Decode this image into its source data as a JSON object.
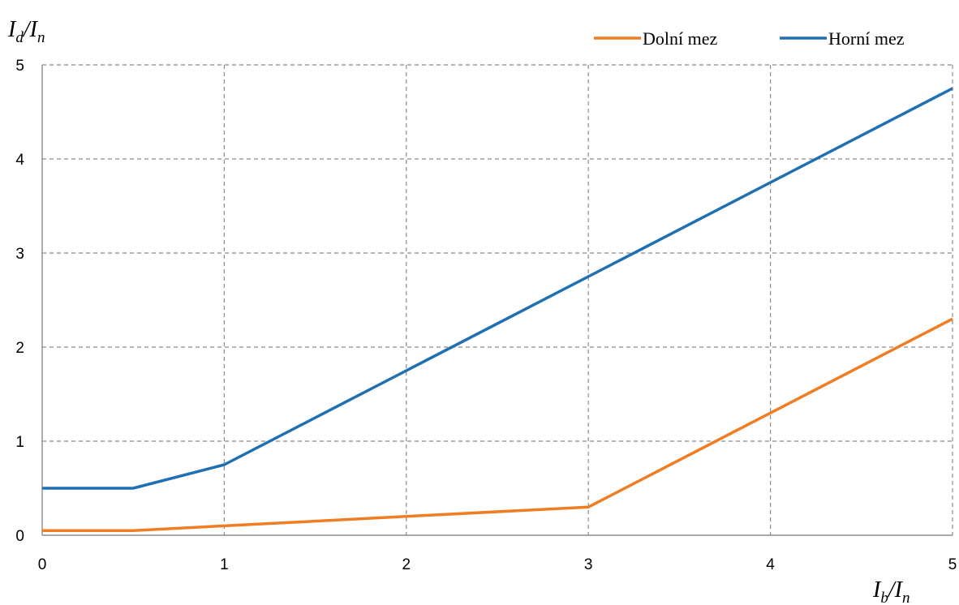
{
  "chart_data": {
    "type": "line",
    "xlabel": {
      "main": "I",
      "sub1": "b",
      "sep": "/I",
      "sub2": "n"
    },
    "ylabel": {
      "main": "I",
      "sub1": "d",
      "sep": "/I",
      "sub2": "n"
    },
    "xlim": [
      0,
      5
    ],
    "ylim": [
      0,
      5
    ],
    "xticks": [
      "0",
      "1",
      "2",
      "3",
      "4",
      "5"
    ],
    "yticks": [
      "0",
      "1",
      "2",
      "3",
      "4",
      "5"
    ],
    "grid": true,
    "legend_position": "top-right",
    "series": [
      {
        "name": "Dolní mez",
        "color": "#f07d22",
        "x": [
          0,
          0.5,
          1,
          2,
          3,
          4,
          5
        ],
        "y": [
          0.05,
          0.05,
          0.1,
          0.2,
          0.3,
          1.3,
          2.3
        ]
      },
      {
        "name": "Horní mez",
        "color": "#1f6fb4",
        "x": [
          0,
          0.5,
          1,
          2,
          3,
          4,
          5
        ],
        "y": [
          0.5,
          0.5,
          0.75,
          1.75,
          2.75,
          3.75,
          4.75
        ]
      }
    ]
  }
}
